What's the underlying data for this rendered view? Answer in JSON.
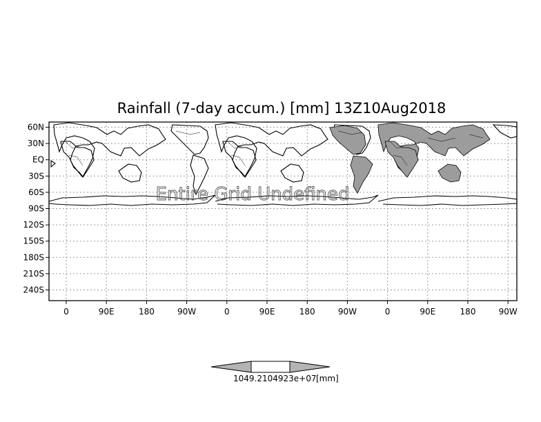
{
  "title": "Rainfall (7-day accum.) [mm] 13Z10Aug2018",
  "overlay_message": "Entire Grid Undefined",
  "y_axis": {
    "tick_labels": [
      "60N",
      "30N",
      "EQ",
      "30S",
      "60S",
      "90S",
      "120S",
      "150S",
      "180S",
      "210S",
      "240S"
    ]
  },
  "x_axis": {
    "tick_labels": [
      "0",
      "90E",
      "180",
      "90W",
      "0",
      "90E",
      "180",
      "90W",
      "0",
      "90E",
      "180",
      "90W"
    ]
  },
  "colorbar": {
    "label_text": "1049.2104923e+07",
    "unit": "[mm]",
    "fill_colors": [
      "#b4b4b4",
      "#ffffff",
      "#b4b4b4"
    ]
  },
  "colors": {
    "shaded_land": "#9c9c9c",
    "grid": "#9a9a9a",
    "frame": "#000000"
  }
}
